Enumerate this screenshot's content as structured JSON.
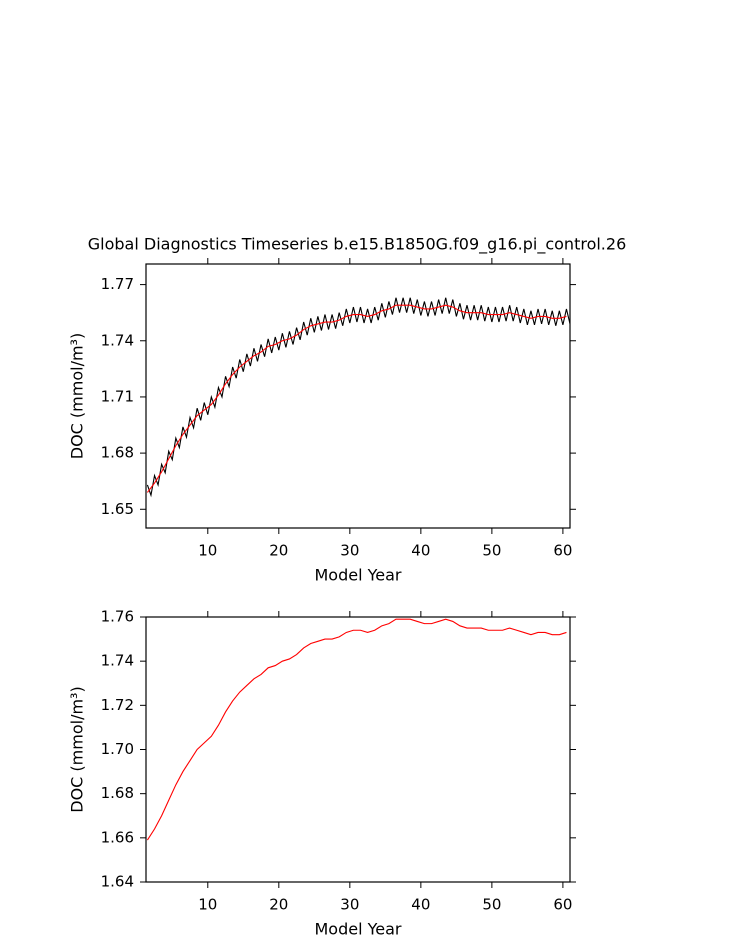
{
  "chart_data": [
    {
      "type": "line",
      "title": "Global Diagnostics Timeseries b.e15.B1850G.f09_g16.pi_control.26",
      "xlabel": "Model Year",
      "ylabel": "DOC (mmol/m³)",
      "xlim": [
        1.3,
        61
      ],
      "ylim": [
        1.64,
        1.781
      ],
      "xticks": [
        10,
        20,
        30,
        40,
        50,
        60
      ],
      "yticks": [
        1.65,
        1.68,
        1.71,
        1.74,
        1.77
      ],
      "series": [
        {
          "color": "#000000",
          "x": [
            1.5,
            2,
            2.5,
            3,
            3.5,
            4,
            4.5,
            5,
            5.5,
            6,
            6.5,
            7,
            7.5,
            8,
            8.5,
            9,
            9.5,
            10,
            10.5,
            11,
            11.5,
            12,
            12.5,
            13,
            13.5,
            14,
            14.5,
            15,
            15.5,
            16,
            16.5,
            17,
            17.5,
            18,
            18.5,
            19,
            19.5,
            20,
            20.5,
            21,
            21.5,
            22,
            22.5,
            23,
            23.5,
            24,
            24.5,
            25,
            25.5,
            26,
            26.5,
            27,
            27.5,
            28,
            28.5,
            29,
            29.5,
            30,
            30.5,
            31,
            31.5,
            32,
            32.5,
            33,
            33.5,
            34,
            34.5,
            35,
            35.5,
            36,
            36.5,
            37,
            37.5,
            38,
            38.5,
            39,
            39.5,
            40,
            40.5,
            41,
            41.5,
            42,
            42.5,
            43,
            43.5,
            44,
            44.5,
            45,
            45.5,
            46,
            46.5,
            47,
            47.5,
            48,
            48.5,
            49,
            49.5,
            50,
            50.5,
            51,
            51.5,
            52,
            52.5,
            53,
            53.5,
            54,
            54.5,
            55,
            55.5,
            56,
            56.5,
            57,
            57.5,
            58,
            58.5,
            59,
            59.5,
            60,
            60.5,
            61
          ],
          "values": [
            1.663,
            1.6575,
            1.668,
            1.663,
            1.674,
            1.6695,
            1.681,
            1.6765,
            1.688,
            1.683,
            1.694,
            1.6885,
            1.699,
            1.6935,
            1.704,
            1.6975,
            1.707,
            1.7005,
            1.71,
            1.7045,
            1.715,
            1.71,
            1.721,
            1.7155,
            1.726,
            1.72,
            1.73,
            1.7235,
            1.733,
            1.7265,
            1.736,
            1.729,
            1.738,
            1.7315,
            1.741,
            1.7335,
            1.742,
            1.735,
            1.744,
            1.7365,
            1.745,
            1.738,
            1.747,
            1.7405,
            1.75,
            1.743,
            1.752,
            1.7445,
            1.753,
            1.7455,
            1.754,
            1.746,
            1.754,
            1.7465,
            1.755,
            1.748,
            1.757,
            1.7495,
            1.758,
            1.75,
            1.758,
            1.7495,
            1.757,
            1.7495,
            1.758,
            1.751,
            1.76,
            1.7525,
            1.761,
            1.754,
            1.763,
            1.755,
            1.763,
            1.755,
            1.763,
            1.7545,
            1.762,
            1.7535,
            1.761,
            1.753,
            1.761,
            1.7535,
            1.762,
            1.7545,
            1.763,
            1.7545,
            1.762,
            1.753,
            1.76,
            1.7515,
            1.759,
            1.751,
            1.759,
            1.751,
            1.759,
            1.7505,
            1.758,
            1.75,
            1.758,
            1.75,
            1.758,
            1.7505,
            1.759,
            1.7505,
            1.758,
            1.7495,
            1.757,
            1.7485,
            1.756,
            1.7485,
            1.757,
            1.749,
            1.757,
            1.7485,
            1.756,
            1.748,
            1.756,
            1.7485,
            1.757,
            1.749
          ]
        },
        {
          "color": "#ff0000",
          "x": [
            1.5,
            2.5,
            3.5,
            4.5,
            5.5,
            6.5,
            7.5,
            8.5,
            9.5,
            10.5,
            11.5,
            12.5,
            13.5,
            14.5,
            15.5,
            16.5,
            17.5,
            18.5,
            19.5,
            20.5,
            21.5,
            22.5,
            23.5,
            24.5,
            25.5,
            26.5,
            27.5,
            28.5,
            29.5,
            30.5,
            31.5,
            32.5,
            33.5,
            34.5,
            35.5,
            36.5,
            37.5,
            38.5,
            39.5,
            40.5,
            41.5,
            42.5,
            43.5,
            44.5,
            45.5,
            46.5,
            47.5,
            48.5,
            49.5,
            50.5,
            51.5,
            52.5,
            53.5,
            54.5,
            55.5,
            56.5,
            57.5,
            58.5,
            59.5,
            60.5
          ],
          "values": [
            1.659,
            1.664,
            1.67,
            1.677,
            1.684,
            1.69,
            1.695,
            1.7,
            1.703,
            1.706,
            1.711,
            1.717,
            1.722,
            1.726,
            1.729,
            1.732,
            1.734,
            1.737,
            1.738,
            1.74,
            1.741,
            1.743,
            1.746,
            1.748,
            1.749,
            1.75,
            1.75,
            1.751,
            1.753,
            1.754,
            1.754,
            1.753,
            1.754,
            1.756,
            1.757,
            1.759,
            1.759,
            1.759,
            1.758,
            1.757,
            1.757,
            1.758,
            1.759,
            1.758,
            1.756,
            1.755,
            1.755,
            1.755,
            1.754,
            1.754,
            1.754,
            1.755,
            1.754,
            1.753,
            1.752,
            1.753,
            1.753,
            1.752,
            1.752,
            1.753
          ]
        }
      ]
    },
    {
      "type": "line",
      "xlabel": "Model Year",
      "ylabel": "DOC (mmol/m³)",
      "xlim": [
        1.3,
        61
      ],
      "ylim": [
        1.64,
        1.76
      ],
      "xticks": [
        10,
        20,
        30,
        40,
        50,
        60
      ],
      "yticks": [
        1.64,
        1.66,
        1.68,
        {
          "value": 1.7,
          "label": "1.70"
        },
        1.72,
        1.74,
        1.76
      ],
      "series": [
        {
          "color": "#ff0000",
          "x": [
            1.5,
            2.5,
            3.5,
            4.5,
            5.5,
            6.5,
            7.5,
            8.5,
            9.5,
            10.5,
            11.5,
            12.5,
            13.5,
            14.5,
            15.5,
            16.5,
            17.5,
            18.5,
            19.5,
            20.5,
            21.5,
            22.5,
            23.5,
            24.5,
            25.5,
            26.5,
            27.5,
            28.5,
            29.5,
            30.5,
            31.5,
            32.5,
            33.5,
            34.5,
            35.5,
            36.5,
            37.5,
            38.5,
            39.5,
            40.5,
            41.5,
            42.5,
            43.5,
            44.5,
            45.5,
            46.5,
            47.5,
            48.5,
            49.5,
            50.5,
            51.5,
            52.5,
            53.5,
            54.5,
            55.5,
            56.5,
            57.5,
            58.5,
            59.5,
            60.5
          ],
          "values": [
            1.659,
            1.664,
            1.67,
            1.677,
            1.684,
            1.69,
            1.695,
            1.7,
            1.703,
            1.706,
            1.711,
            1.717,
            1.722,
            1.726,
            1.729,
            1.732,
            1.734,
            1.737,
            1.738,
            1.74,
            1.741,
            1.743,
            1.746,
            1.748,
            1.749,
            1.75,
            1.75,
            1.751,
            1.753,
            1.754,
            1.754,
            1.753,
            1.754,
            1.756,
            1.757,
            1.759,
            1.759,
            1.759,
            1.758,
            1.757,
            1.757,
            1.758,
            1.759,
            1.758,
            1.756,
            1.755,
            1.755,
            1.755,
            1.754,
            1.754,
            1.754,
            1.755,
            1.754,
            1.753,
            1.752,
            1.753,
            1.753,
            1.752,
            1.752,
            1.753
          ]
        }
      ]
    }
  ]
}
